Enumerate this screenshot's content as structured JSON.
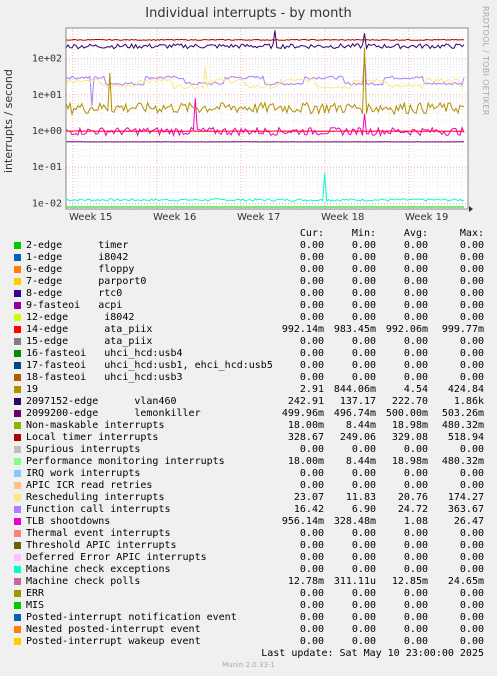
{
  "side_label": "RRDTOOL / TOBI OETIKER",
  "footer": {
    "last_update": "Last update:  Sat May 10 23:00:00 2025",
    "version": "Munin 2.0.33-1"
  },
  "legend_header": [
    "Cur:",
    "Min:",
    "Avg:",
    "Max:"
  ],
  "chart_data": {
    "type": "line",
    "title": "Individual interrupts - by month",
    "ylabel": "interrupts / second",
    "yscale": "log",
    "ylim": [
      0.007,
      700
    ],
    "y_ticks": [
      "1e-02",
      "1e-01",
      "1e+00",
      "1e+01",
      "1e+02"
    ],
    "x_ticks": [
      "Week 15",
      "Week 16",
      "Week 17",
      "Week 18",
      "Week 19"
    ],
    "grid": true,
    "series": [
      {
        "name": "2-edge      timer",
        "color": "#00cc00",
        "cur": "0.00",
        "min": "0.00",
        "avg": "0.00",
        "max": "0.00"
      },
      {
        "name": "1-edge      i8042",
        "color": "#0066b3",
        "cur": "0.00",
        "min": "0.00",
        "avg": "0.00",
        "max": "0.00"
      },
      {
        "name": "6-edge      floppy",
        "color": "#ff8000",
        "cur": "0.00",
        "min": "0.00",
        "avg": "0.00",
        "max": "0.00"
      },
      {
        "name": "7-edge      parport0",
        "color": "#ffcc00",
        "cur": "0.00",
        "min": "0.00",
        "avg": "0.00",
        "max": "0.00"
      },
      {
        "name": "8-edge      rtc0",
        "color": "#330099",
        "cur": "0.00",
        "min": "0.00",
        "avg": "0.00",
        "max": "0.00"
      },
      {
        "name": "9-fasteoi   acpi",
        "color": "#990099",
        "cur": "0.00",
        "min": "0.00",
        "avg": "0.00",
        "max": "0.00"
      },
      {
        "name": "12-edge      i8042",
        "color": "#ccff00",
        "cur": "0.00",
        "min": "0.00",
        "avg": "0.00",
        "max": "0.00"
      },
      {
        "name": "14-edge      ata_piix",
        "color": "#ff0000",
        "cur": "992.14m",
        "min": "983.45m",
        "avg": "992.06m",
        "max": "999.77m"
      },
      {
        "name": "15-edge      ata_piix",
        "color": "#808080",
        "cur": "0.00",
        "min": "0.00",
        "avg": "0.00",
        "max": "0.00"
      },
      {
        "name": "16-fasteoi   uhci_hcd:usb4",
        "color": "#008f00",
        "cur": "0.00",
        "min": "0.00",
        "avg": "0.00",
        "max": "0.00"
      },
      {
        "name": "17-fasteoi   uhci_hcd:usb1, ehci_hcd:usb5",
        "color": "#00487d",
        "cur": "0.00",
        "min": "0.00",
        "avg": "0.00",
        "max": "0.00"
      },
      {
        "name": "18-fasteoi   uhci_hcd:usb3",
        "color": "#b35a00",
        "cur": "0.00",
        "min": "0.00",
        "avg": "0.00",
        "max": "0.00"
      },
      {
        "name": "19",
        "color": "#b38f00",
        "cur": "2.91",
        "min": "844.06m",
        "avg": "4.54",
        "max": "424.84"
      },
      {
        "name": "2097152-edge      vlan460",
        "color": "#330066",
        "cur": "242.91",
        "min": "137.17",
        "avg": "222.70",
        "max": "1.86k"
      },
      {
        "name": "2099200-edge      lemonkiller",
        "color": "#6b006b",
        "cur": "499.96m",
        "min": "496.74m",
        "avg": "500.00m",
        "max": "503.26m"
      },
      {
        "name": "Non-maskable interrupts",
        "color": "#8fb300",
        "cur": "18.00m",
        "min": "8.44m",
        "avg": "18.98m",
        "max": "480.32m"
      },
      {
        "name": "Local timer interrupts",
        "color": "#b30000",
        "cur": "328.67",
        "min": "249.06",
        "avg": "329.08",
        "max": "518.94"
      },
      {
        "name": "Spurious interrupts",
        "color": "#bebebe",
        "cur": "0.00",
        "min": "0.00",
        "avg": "0.00",
        "max": "0.00"
      },
      {
        "name": "Performance monitoring interrupts",
        "color": "#80ff80",
        "cur": "18.00m",
        "min": "8.44m",
        "avg": "18.98m",
        "max": "480.32m"
      },
      {
        "name": "IRQ work interrupts",
        "color": "#80c9ff",
        "cur": "0.00",
        "min": "0.00",
        "avg": "0.00",
        "max": "0.00"
      },
      {
        "name": "APIC ICR read retries",
        "color": "#ffc080",
        "cur": "0.00",
        "min": "0.00",
        "avg": "0.00",
        "max": "0.00"
      },
      {
        "name": "Rescheduling interrupts",
        "color": "#ffe680",
        "cur": "23.07",
        "min": "11.83",
        "avg": "20.76",
        "max": "174.27"
      },
      {
        "name": "Function call interrupts",
        "color": "#aa80ff",
        "cur": "16.42",
        "min": "6.90",
        "avg": "24.72",
        "max": "363.67"
      },
      {
        "name": "TLB shootdowns",
        "color": "#ee00cc",
        "cur": "956.14m",
        "min": "328.48m",
        "avg": "1.08",
        "max": "26.47"
      },
      {
        "name": "Thermal event interrupts",
        "color": "#ff8080",
        "cur": "0.00",
        "min": "0.00",
        "avg": "0.00",
        "max": "0.00"
      },
      {
        "name": "Threshold APIC interrupts",
        "color": "#666600",
        "cur": "0.00",
        "min": "0.00",
        "avg": "0.00",
        "max": "0.00"
      },
      {
        "name": "Deferred Error APIC interrupts",
        "color": "#ffbfff",
        "cur": "0.00",
        "min": "0.00",
        "avg": "0.00",
        "max": "0.00"
      },
      {
        "name": "Machine check exceptions",
        "color": "#00ffcc",
        "cur": "0.00",
        "min": "0.00",
        "avg": "0.00",
        "max": "0.00"
      },
      {
        "name": "Machine check polls",
        "color": "#cc6699",
        "cur": "12.78m",
        "min": "311.11u",
        "avg": "12.85m",
        "max": "24.65m"
      },
      {
        "name": "ERR",
        "color": "#999900",
        "cur": "0.00",
        "min": "0.00",
        "avg": "0.00",
        "max": "0.00"
      },
      {
        "name": "MIS",
        "color": "#00cc00",
        "cur": "0.00",
        "min": "0.00",
        "avg": "0.00",
        "max": "0.00"
      },
      {
        "name": "Posted-interrupt notification event",
        "color": "#0066b3",
        "cur": "0.00",
        "min": "0.00",
        "avg": "0.00",
        "max": "0.00"
      },
      {
        "name": "Nested posted-interrupt event",
        "color": "#ff8000",
        "cur": "0.00",
        "min": "0.00",
        "avg": "0.00",
        "max": "0.00"
      },
      {
        "name": "Posted-interrupt wakeup event",
        "color": "#ffcc00",
        "cur": "0.00",
        "min": "0.00",
        "avg": "0.00",
        "max": "0.00"
      }
    ]
  }
}
